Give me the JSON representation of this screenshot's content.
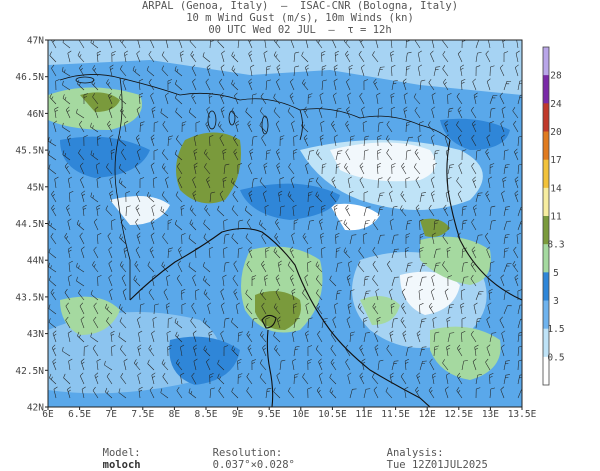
{
  "title": {
    "line1": "ARPAL (Genoa, Italy)  –  ISAC-CNR (Bologna, Italy)",
    "line2": "10 m Wind Gust (m/s), 10m Winds (kn)",
    "line3": "00 UTC Wed 02 JUL  –  τ = 12h"
  },
  "lat_ticks": [
    "47N",
    "46.5N",
    "46N",
    "45.5N",
    "45N",
    "44.5N",
    "44N",
    "43.5N",
    "43N",
    "42.5N",
    "42N"
  ],
  "lon_ticks": [
    "6E",
    "6.5E",
    "7E",
    "7.5E",
    "8E",
    "8.5E",
    "9E",
    "9.5E",
    "10E",
    "10.5E",
    "11E",
    "11.5E",
    "12E",
    "12.5E",
    "13E",
    "13.5E"
  ],
  "colorbar": {
    "labels": [
      "28",
      "24",
      "20",
      "17",
      "14",
      "11",
      "8.3",
      "5",
      "3",
      "1.5",
      "0.5"
    ],
    "colors": [
      "#b9a6e8",
      "#7a2aa8",
      "#c0392b",
      "#e07b1f",
      "#f2c23a",
      "#f7eda0",
      "#7a9a3c",
      "#a5d9a0",
      "#2f86d8",
      "#6fb3ee",
      "#bfe3f7",
      "#ffffff"
    ]
  },
  "footer": {
    "model_label": "Model:",
    "model_value": "moloch",
    "resolution_label": "Resolution:",
    "resolution_value": "0.037°×0.028°",
    "analysis_label": "Analysis:",
    "analysis_value": "Tue 12Z01JUL2025"
  }
}
